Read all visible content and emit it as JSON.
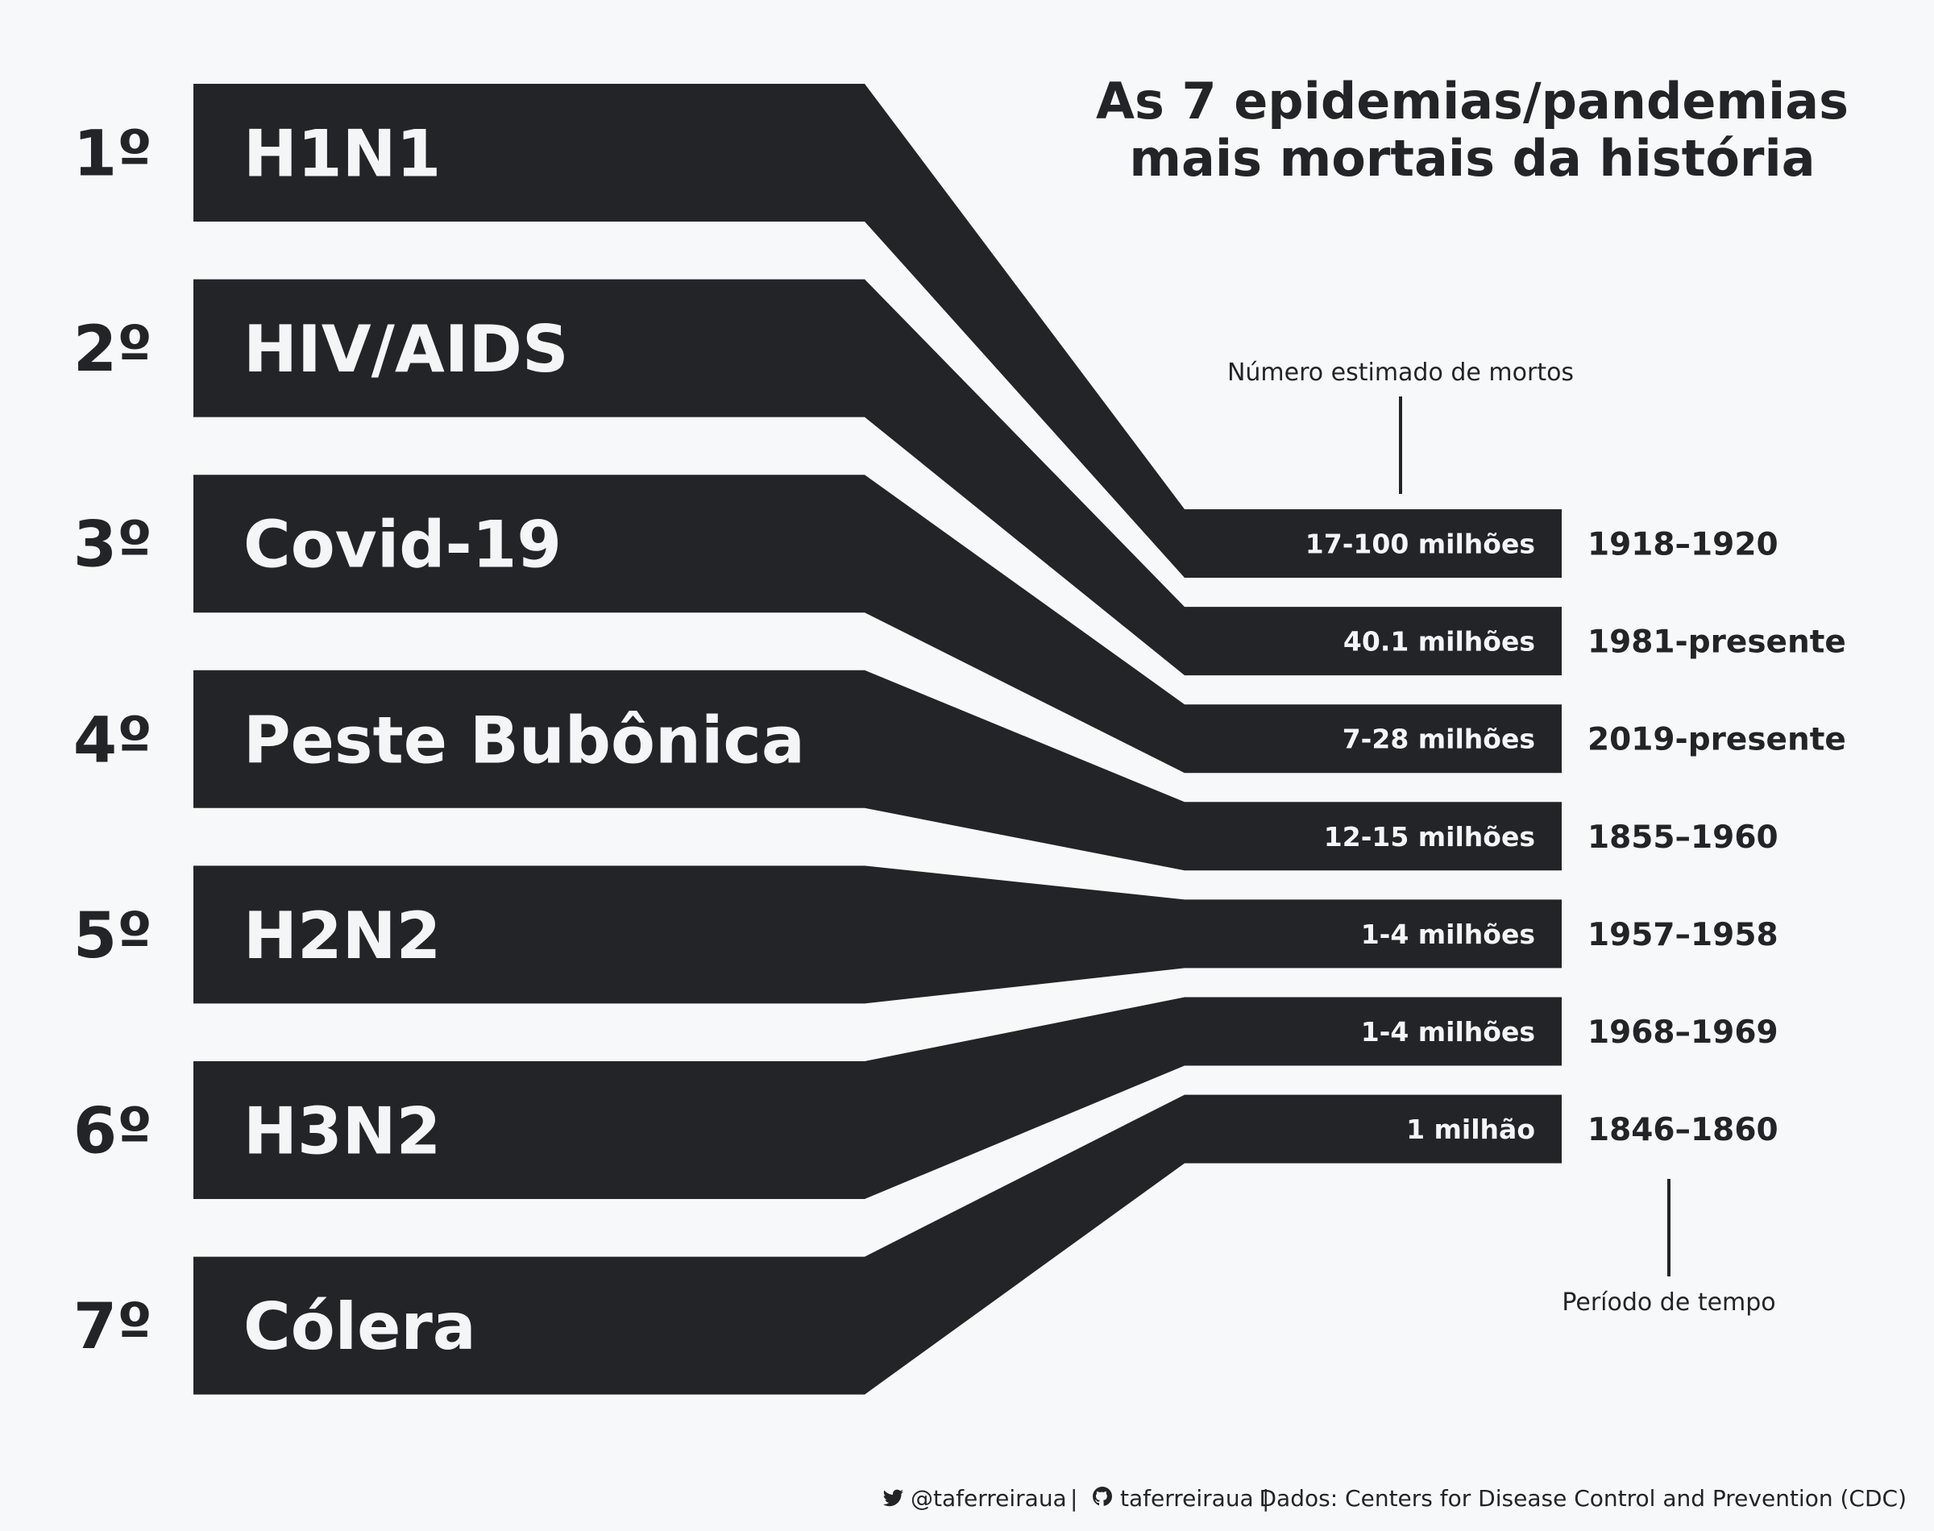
{
  "chart_data": {
    "type": "table",
    "title_lines": [
      "As 7 epidemias/pandemias",
      "mais mortais da história"
    ],
    "annotation_deaths": "Número estimado de mortos",
    "annotation_period": "Período de tempo",
    "colors": {
      "background": "#f7f8fa",
      "band": "#222428",
      "text_light": "#f4f5f7"
    },
    "rows": [
      {
        "rank": "1º",
        "name": "H1N1",
        "deaths": "17-100 milhões",
        "period": "1918–1920"
      },
      {
        "rank": "2º",
        "name": "HIV/AIDS",
        "deaths": "40.1 milhões",
        "period": "1981-presente"
      },
      {
        "rank": "3º",
        "name": "Covid-19",
        "deaths": "7-28 milhões",
        "period": "2019-presente"
      },
      {
        "rank": "4º",
        "name": "Peste Bubônica",
        "deaths": "12-15 milhões",
        "period": "1855–1960"
      },
      {
        "rank": "5º",
        "name": "H2N2",
        "deaths": "1-4 milhões",
        "period": "1957–1958"
      },
      {
        "rank": "6º",
        "name": "H3N2",
        "deaths": "1-4 milhões",
        "period": "1968–1969"
      },
      {
        "rank": "7º",
        "name": "Cólera",
        "deaths": "1 milhão",
        "period": "1846–1860"
      }
    ]
  },
  "footer": {
    "twitter_icon": "twitter-icon",
    "twitter": "@taferreiraua",
    "github_icon": "github-icon",
    "github": "taferreiraua",
    "source": "Dados: Centers for Disease Control and Prevention (CDC)"
  }
}
